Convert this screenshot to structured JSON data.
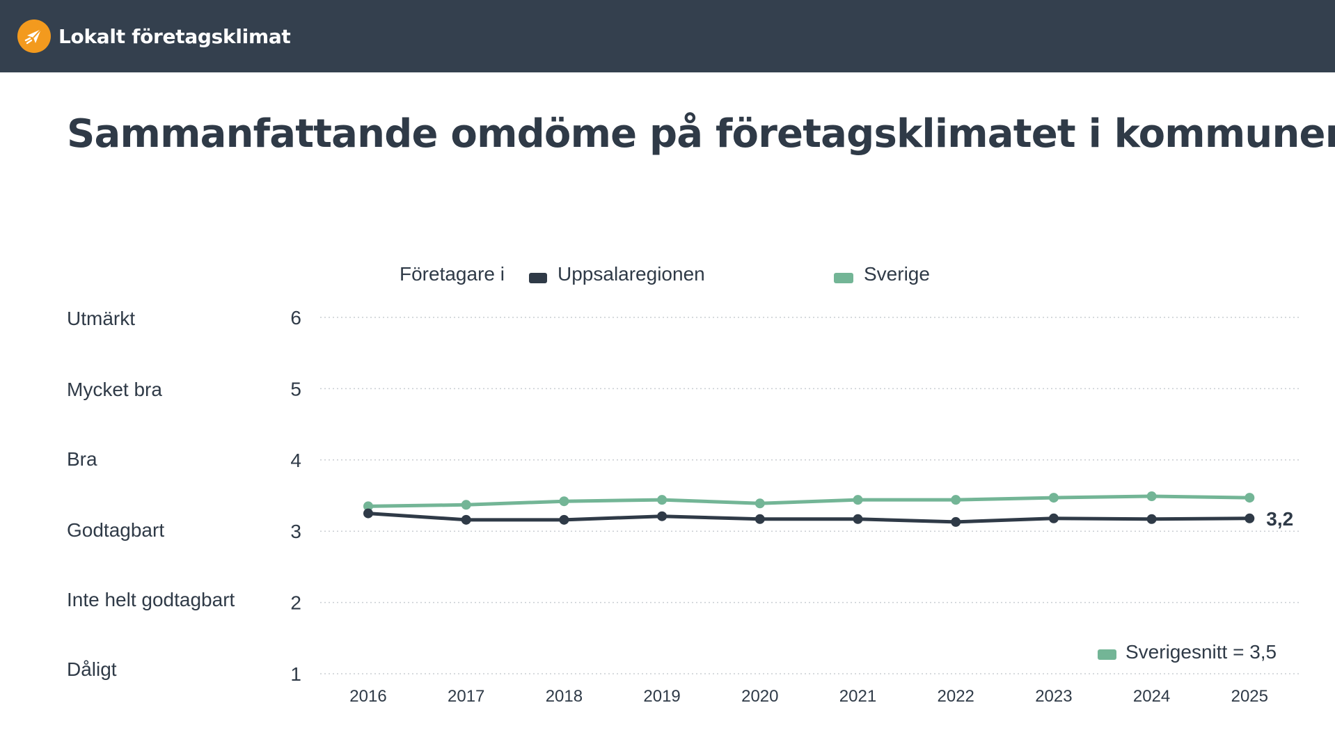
{
  "header": {
    "app_title": "Lokalt företagsklimat",
    "logo_icon": "paper-plane-icon",
    "background_color": "#34404e",
    "logo_color": "#f39a1e"
  },
  "page": {
    "title": "Sammanfattande omdöme på företagsklimatet i kommunen"
  },
  "legend": {
    "prefix": "Företagare i",
    "items": [
      {
        "label": "Uppsalaregionen",
        "color": "#2f3a47"
      },
      {
        "label": "Sverige",
        "color": "#73b596"
      }
    ]
  },
  "average_note": {
    "label": "Sverigesnitt = 3,5",
    "color": "#73b596"
  },
  "rating_labels": [
    "Utmärkt",
    "Mycket bra",
    "Bra",
    "Godtagbart",
    "Inte helt godtagbart",
    "Dåligt"
  ],
  "chart_data": {
    "type": "line",
    "title": "",
    "x": [
      2016,
      2017,
      2018,
      2019,
      2020,
      2021,
      2022,
      2023,
      2024,
      2025
    ],
    "ylim": [
      1,
      6
    ],
    "yticks": [
      1,
      2,
      3,
      4,
      5,
      6
    ],
    "ytick_labels": [
      "Dåligt",
      "Inte helt godtagbart",
      "Godtagbart",
      "Bra",
      "Mycket bra",
      "Utmärkt"
    ],
    "grid": "horizontal dotted",
    "legend_position": "top",
    "series": [
      {
        "name": "Uppsalaregionen",
        "color": "#2f3a47",
        "values": [
          3.25,
          3.16,
          3.16,
          3.21,
          3.17,
          3.17,
          3.13,
          3.18,
          3.17,
          3.18
        ],
        "end_label": "3,2"
      },
      {
        "name": "Sverige",
        "color": "#73b596",
        "values": [
          3.35,
          3.37,
          3.42,
          3.44,
          3.39,
          3.44,
          3.44,
          3.47,
          3.49,
          3.47
        ]
      }
    ]
  }
}
